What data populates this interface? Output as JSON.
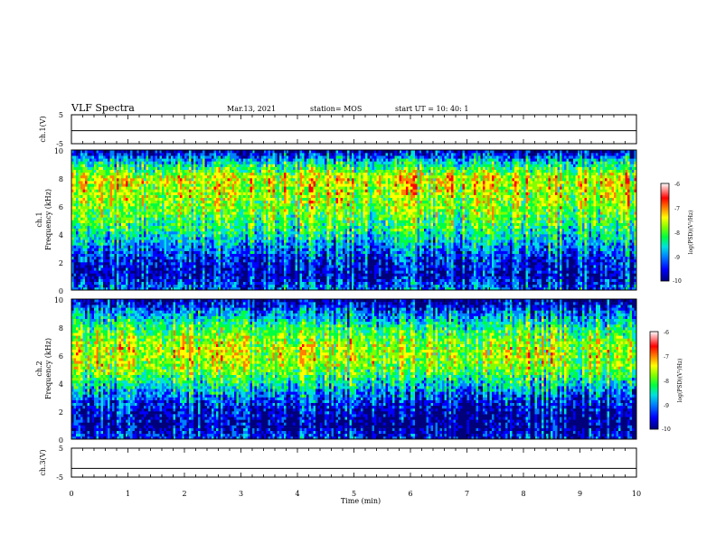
{
  "header": {
    "title": "VLF Spectra",
    "date": "Mar.13, 2021",
    "station": "station= MOS",
    "start": "start  UT =   10: 40: 1"
  },
  "xaxis": {
    "label": "Time (min)",
    "ticks": [
      "0",
      "1",
      "2",
      "3",
      "4",
      "5",
      "6",
      "7",
      "8",
      "9",
      "10"
    ],
    "range": [
      0,
      10
    ]
  },
  "panels": {
    "ch1_waveform": {
      "ylabel": "ch.1(V)",
      "ticks": [
        "5",
        "-5"
      ],
      "range": [
        -5,
        5
      ]
    },
    "ch1_spectrogram": {
      "ylabel1": "ch.1",
      "ylabel2": "Frequency (kHz)",
      "ticks": [
        "0",
        "2",
        "4",
        "6",
        "8",
        "10"
      ],
      "range": [
        0,
        10
      ]
    },
    "ch2_spectrogram": {
      "ylabel1": "ch.2",
      "ylabel2": "Frequency (kHz)",
      "ticks": [
        "0",
        "2",
        "4",
        "6",
        "8",
        "10"
      ],
      "range": [
        0,
        10
      ]
    },
    "ch3_waveform": {
      "ylabel": "ch.3(V)",
      "ticks": [
        "5",
        "-5"
      ],
      "range": [
        -5,
        5
      ]
    }
  },
  "colorbar": {
    "label": "log(PSD)(V²/Hz)",
    "ticks": [
      "-6",
      "-7",
      "-8",
      "-9",
      "-10"
    ],
    "range": [
      -10,
      -6
    ]
  },
  "colors": [
    "#00007a",
    "#0000ff",
    "#0080ff",
    "#00e0e0",
    "#00ff40",
    "#80ff00",
    "#ffff00",
    "#ff8000",
    "#ff0000",
    "#ffffff"
  ],
  "chart_data": [
    {
      "type": "line",
      "name": "ch.1(V)",
      "x": [
        0,
        10
      ],
      "y": [
        -0.5,
        -0.5
      ],
      "ylim": [
        -5,
        5
      ],
      "xlim": [
        0,
        10
      ]
    },
    {
      "type": "heatmap",
      "name": "ch.1",
      "xlim": [
        0,
        10
      ],
      "ylim": [
        0,
        10
      ],
      "freq_profile_kHz": [
        0,
        1,
        2,
        3,
        4,
        5,
        6,
        7,
        8,
        9,
        10
      ],
      "mean_logpsd": [
        -8.8,
        -9.5,
        -9.3,
        -8.8,
        -8.2,
        -7.8,
        -7.5,
        -7.3,
        -7.1,
        -8.2,
        -9.6
      ],
      "zlim": [
        -10,
        -6
      ]
    },
    {
      "type": "heatmap",
      "name": "ch.2",
      "xlim": [
        0,
        10
      ],
      "ylim": [
        0,
        10
      ],
      "freq_profile_kHz": [
        0,
        1,
        2,
        3,
        4,
        5,
        6,
        7,
        8,
        9,
        10
      ],
      "mean_logpsd": [
        -9.2,
        -9.7,
        -9.5,
        -9.0,
        -8.3,
        -7.6,
        -7.3,
        -7.5,
        -8.0,
        -8.8,
        -9.7
      ],
      "zlim": [
        -10,
        -6
      ]
    },
    {
      "type": "line",
      "name": "ch.3(V)",
      "x": [
        0,
        10
      ],
      "y": [
        -2,
        -2
      ],
      "ylim": [
        -5,
        5
      ],
      "xlim": [
        0,
        10
      ]
    }
  ]
}
